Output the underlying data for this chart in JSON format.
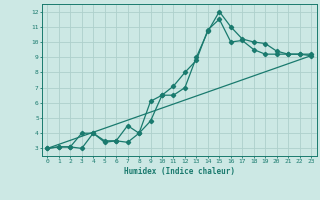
{
  "line1_x": [
    0,
    1,
    2,
    3,
    4,
    5,
    6,
    7,
    8,
    9,
    10,
    11,
    12,
    13,
    14,
    15,
    16,
    17,
    18,
    19,
    20,
    21,
    22,
    23
  ],
  "line1_y": [
    3,
    3.1,
    3.1,
    3.0,
    4.0,
    3.5,
    3.5,
    4.5,
    4.0,
    4.8,
    6.5,
    6.5,
    7.0,
    9.0,
    10.7,
    12.0,
    11.0,
    10.2,
    10.0,
    9.9,
    9.4,
    9.2,
    9.2,
    9.1
  ],
  "line2_x": [
    0,
    1,
    2,
    3,
    4,
    5,
    6,
    7,
    8,
    9,
    10,
    11,
    12,
    13,
    14,
    15,
    16,
    17,
    18,
    19,
    20,
    21,
    22,
    23
  ],
  "line2_y": [
    3,
    3.1,
    3.1,
    4.0,
    4.0,
    3.4,
    3.5,
    3.4,
    4.0,
    6.1,
    6.5,
    7.1,
    8.0,
    8.8,
    10.8,
    11.5,
    10.0,
    10.1,
    9.5,
    9.2,
    9.2,
    9.2,
    9.2,
    9.2
  ],
  "line3_x": [
    0,
    23
  ],
  "line3_y": [
    3,
    9.1
  ],
  "color": "#1a7a6e",
  "bg_color": "#cce8e4",
  "grid_color": "#aed0cc",
  "xlabel": "Humidex (Indice chaleur)",
  "ylim": [
    2.5,
    12.5
  ],
  "xlim": [
    -0.5,
    23.5
  ],
  "yticks": [
    3,
    4,
    5,
    6,
    7,
    8,
    9,
    10,
    11,
    12
  ],
  "xticks": [
    0,
    1,
    2,
    3,
    4,
    5,
    6,
    7,
    8,
    9,
    10,
    11,
    12,
    13,
    14,
    15,
    16,
    17,
    18,
    19,
    20,
    21,
    22,
    23
  ],
  "marker": "D",
  "markersize": 2.2,
  "linewidth": 0.9
}
